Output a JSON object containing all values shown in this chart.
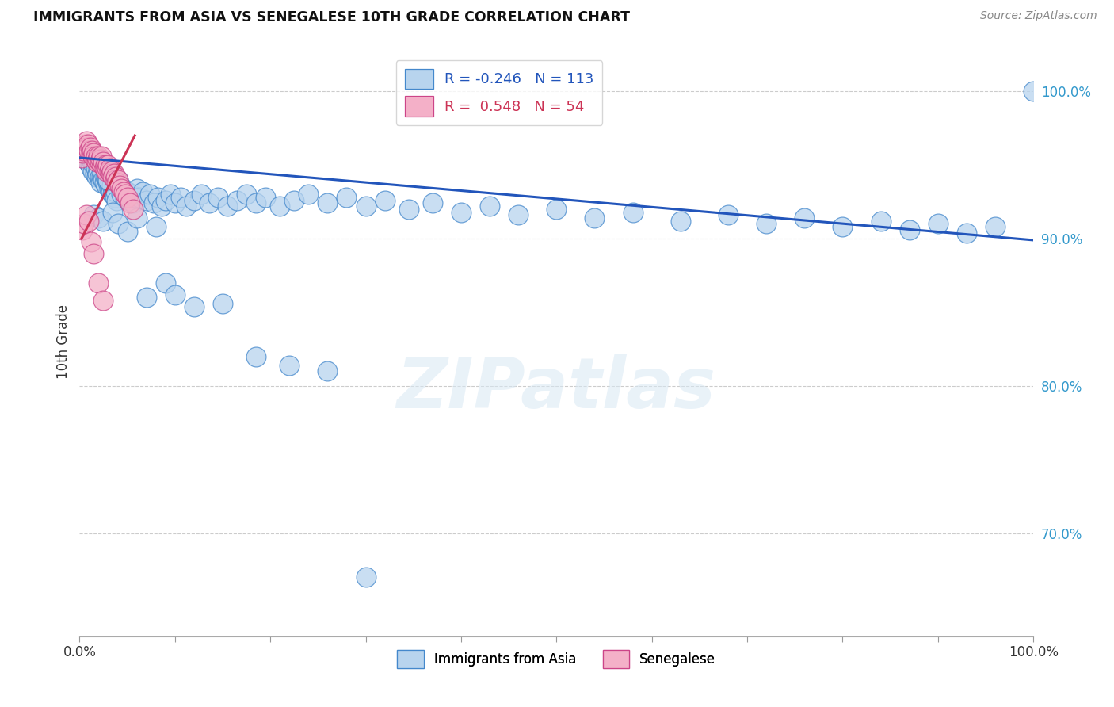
{
  "title": "IMMIGRANTS FROM ASIA VS SENEGALESE 10TH GRADE CORRELATION CHART",
  "source": "Source: ZipAtlas.com",
  "ylabel": "10th Grade",
  "xlim": [
    0.0,
    1.0
  ],
  "ylim": [
    0.63,
    1.03
  ],
  "yticks": [
    0.7,
    0.8,
    0.9,
    1.0
  ],
  "ytick_labels": [
    "70.0%",
    "80.0%",
    "90.0%",
    "100.0%"
  ],
  "xticks": [
    0.0,
    0.1,
    0.2,
    0.3,
    0.4,
    0.5,
    0.6,
    0.7,
    0.8,
    0.9,
    1.0
  ],
  "blue_R": -0.246,
  "blue_N": 113,
  "pink_R": 0.548,
  "pink_N": 54,
  "blue_color": "#b8d4ee",
  "pink_color": "#f4b0c8",
  "blue_edge_color": "#4488cc",
  "pink_edge_color": "#cc4488",
  "blue_line_color": "#2255bb",
  "pink_line_color": "#cc3355",
  "legend_blue_label": "Immigrants from Asia",
  "legend_pink_label": "Senegalese",
  "watermark": "ZIPatlas",
  "blue_line_x0": 0.0,
  "blue_line_y0": 0.955,
  "blue_line_x1": 1.0,
  "blue_line_y1": 0.899,
  "pink_line_x0": 0.002,
  "pink_line_y0": 0.9,
  "pink_line_x1": 0.058,
  "pink_line_y1": 0.97,
  "blue_x": [
    0.003,
    0.004,
    0.005,
    0.006,
    0.007,
    0.008,
    0.009,
    0.01,
    0.011,
    0.012,
    0.013,
    0.014,
    0.015,
    0.016,
    0.017,
    0.018,
    0.019,
    0.02,
    0.021,
    0.022,
    0.023,
    0.024,
    0.025,
    0.026,
    0.027,
    0.028,
    0.029,
    0.03,
    0.031,
    0.032,
    0.033,
    0.034,
    0.035,
    0.036,
    0.037,
    0.038,
    0.039,
    0.04,
    0.042,
    0.044,
    0.046,
    0.048,
    0.05,
    0.052,
    0.054,
    0.056,
    0.058,
    0.06,
    0.063,
    0.066,
    0.07,
    0.074,
    0.078,
    0.082,
    0.086,
    0.09,
    0.095,
    0.1,
    0.106,
    0.112,
    0.12,
    0.128,
    0.136,
    0.145,
    0.155,
    0.165,
    0.175,
    0.185,
    0.195,
    0.21,
    0.225,
    0.24,
    0.26,
    0.28,
    0.3,
    0.32,
    0.345,
    0.37,
    0.4,
    0.43,
    0.46,
    0.5,
    0.54,
    0.58,
    0.63,
    0.68,
    0.72,
    0.76,
    0.8,
    0.84,
    0.87,
    0.9,
    0.93,
    0.96,
    1.0,
    0.015,
    0.02,
    0.025,
    0.03,
    0.035,
    0.04,
    0.05,
    0.06,
    0.07,
    0.08,
    0.09,
    0.1,
    0.12,
    0.15,
    0.185,
    0.22,
    0.26,
    0.3
  ],
  "blue_y": [
    0.96,
    0.962,
    0.958,
    0.956,
    0.954,
    0.958,
    0.952,
    0.956,
    0.95,
    0.948,
    0.952,
    0.946,
    0.95,
    0.944,
    0.948,
    0.942,
    0.944,
    0.948,
    0.942,
    0.938,
    0.942,
    0.946,
    0.94,
    0.938,
    0.942,
    0.936,
    0.94,
    0.938,
    0.934,
    0.938,
    0.932,
    0.936,
    0.93,
    0.934,
    0.928,
    0.932,
    0.926,
    0.94,
    0.936,
    0.93,
    0.934,
    0.928,
    0.932,
    0.926,
    0.93,
    0.924,
    0.928,
    0.934,
    0.928,
    0.932,
    0.926,
    0.93,
    0.924,
    0.928,
    0.922,
    0.926,
    0.93,
    0.924,
    0.928,
    0.922,
    0.926,
    0.93,
    0.924,
    0.928,
    0.922,
    0.926,
    0.93,
    0.924,
    0.928,
    0.922,
    0.926,
    0.93,
    0.924,
    0.928,
    0.922,
    0.926,
    0.92,
    0.924,
    0.918,
    0.922,
    0.916,
    0.92,
    0.914,
    0.918,
    0.912,
    0.916,
    0.91,
    0.914,
    0.908,
    0.912,
    0.906,
    0.91,
    0.904,
    0.908,
    1.0,
    0.916,
    0.914,
    0.912,
    0.94,
    0.918,
    0.91,
    0.905,
    0.914,
    0.86,
    0.908,
    0.87,
    0.862,
    0.854,
    0.856,
    0.82,
    0.814,
    0.81,
    0.67
  ],
  "pink_x": [
    0.002,
    0.003,
    0.004,
    0.005,
    0.006,
    0.007,
    0.008,
    0.009,
    0.01,
    0.011,
    0.012,
    0.013,
    0.014,
    0.015,
    0.016,
    0.017,
    0.018,
    0.019,
    0.02,
    0.021,
    0.022,
    0.023,
    0.024,
    0.025,
    0.026,
    0.027,
    0.028,
    0.029,
    0.03,
    0.031,
    0.032,
    0.033,
    0.034,
    0.035,
    0.036,
    0.037,
    0.038,
    0.039,
    0.04,
    0.042,
    0.044,
    0.046,
    0.048,
    0.05,
    0.053,
    0.056,
    0.003,
    0.005,
    0.007,
    0.01,
    0.012,
    0.015,
    0.02,
    0.025
  ],
  "pink_y": [
    0.955,
    0.958,
    0.96,
    0.962,
    0.964,
    0.966,
    0.962,
    0.964,
    0.96,
    0.962,
    0.958,
    0.96,
    0.956,
    0.958,
    0.954,
    0.956,
    0.952,
    0.954,
    0.956,
    0.952,
    0.954,
    0.956,
    0.95,
    0.952,
    0.948,
    0.95,
    0.946,
    0.948,
    0.95,
    0.946,
    0.948,
    0.944,
    0.946,
    0.942,
    0.944,
    0.94,
    0.942,
    0.938,
    0.94,
    0.936,
    0.934,
    0.932,
    0.93,
    0.928,
    0.924,
    0.92,
    0.906,
    0.91,
    0.916,
    0.912,
    0.898,
    0.89,
    0.87,
    0.858
  ]
}
